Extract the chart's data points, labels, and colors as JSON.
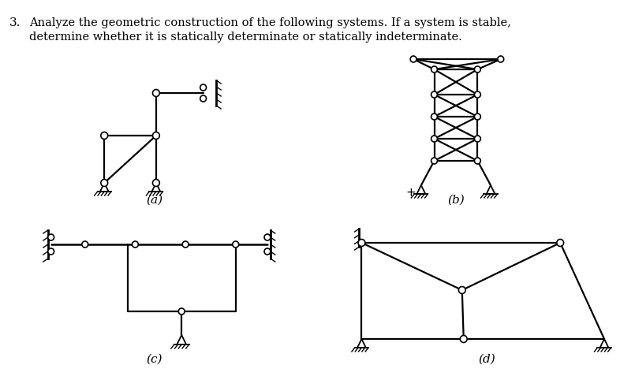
{
  "bg_color": "#ffffff",
  "line_color": "#000000",
  "node_color": "#ffffff",
  "node_edge_color": "#000000",
  "title_num": "3.",
  "title_line1": "Analyze the geometric construction of the following systems. If a system is stable,",
  "title_line2": "determine whether it is statically determinate or statically indeterminate.",
  "label_a": "(a)",
  "label_b": "(b)",
  "label_c": "(c)",
  "label_d": "(d)"
}
